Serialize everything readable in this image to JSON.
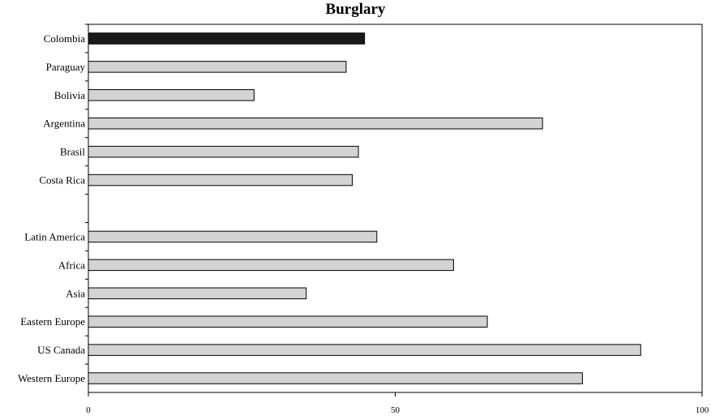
{
  "chart_data": {
    "type": "bar",
    "orientation": "horizontal",
    "title": "Burglary",
    "xlabel": "",
    "ylabel": "",
    "xlim": [
      0,
      100
    ],
    "x_ticks": [
      "0",
      "50",
      "100"
    ],
    "grid": false,
    "categories": [
      "Colombia",
      "Paraguay",
      "Bolivia",
      "Argentina",
      "Brasil",
      "Costa Rica",
      "",
      "Latin America",
      "Africa",
      "Asia",
      "Eastern Europe",
      "US Canada",
      "Western Europe"
    ],
    "values": [
      45,
      42,
      27,
      74,
      44,
      43,
      null,
      47,
      59.5,
      35.5,
      65,
      90,
      80.5
    ],
    "colors": {
      "highlight": "#1a1a1a",
      "default": "#d3d3d3",
      "stroke": "#000000"
    },
    "highlight_category": "Colombia"
  }
}
